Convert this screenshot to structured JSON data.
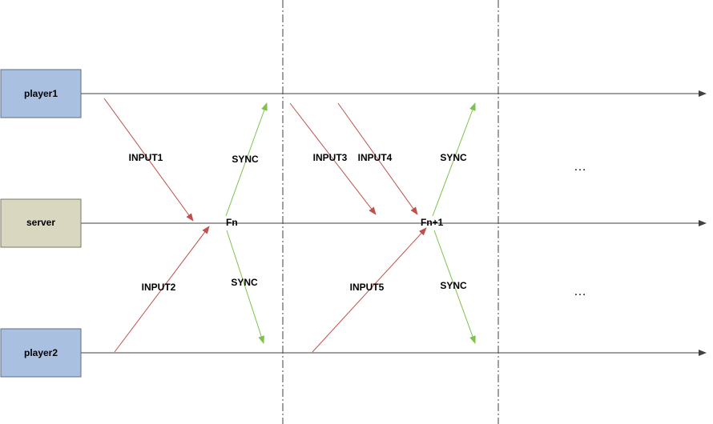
{
  "actors": {
    "player1": "player1",
    "server": "server",
    "player2": "player2"
  },
  "frames": {
    "fn": "Fn",
    "fn1": "Fn+1"
  },
  "messages": {
    "input1": "INPUT1",
    "input2": "INPUT2",
    "input3": "INPUT3",
    "input4": "INPUT4",
    "input5": "INPUT5",
    "sync_up_1": "SYNC",
    "sync_down_1": "SYNC",
    "sync_up_2": "SYNC",
    "sync_down_2": "SYNC"
  },
  "ellipsis": {
    "top": "…",
    "bottom": "…"
  },
  "colors": {
    "player_fill": "#a9c0e0",
    "player_border": "#5e6e88",
    "server_fill": "#d9d7bf",
    "server_border": "#7b7a6a",
    "input_arrow": "#c0504d",
    "sync_arrow": "#7dc24a",
    "timeline": "#404040",
    "divider": "#404040"
  }
}
